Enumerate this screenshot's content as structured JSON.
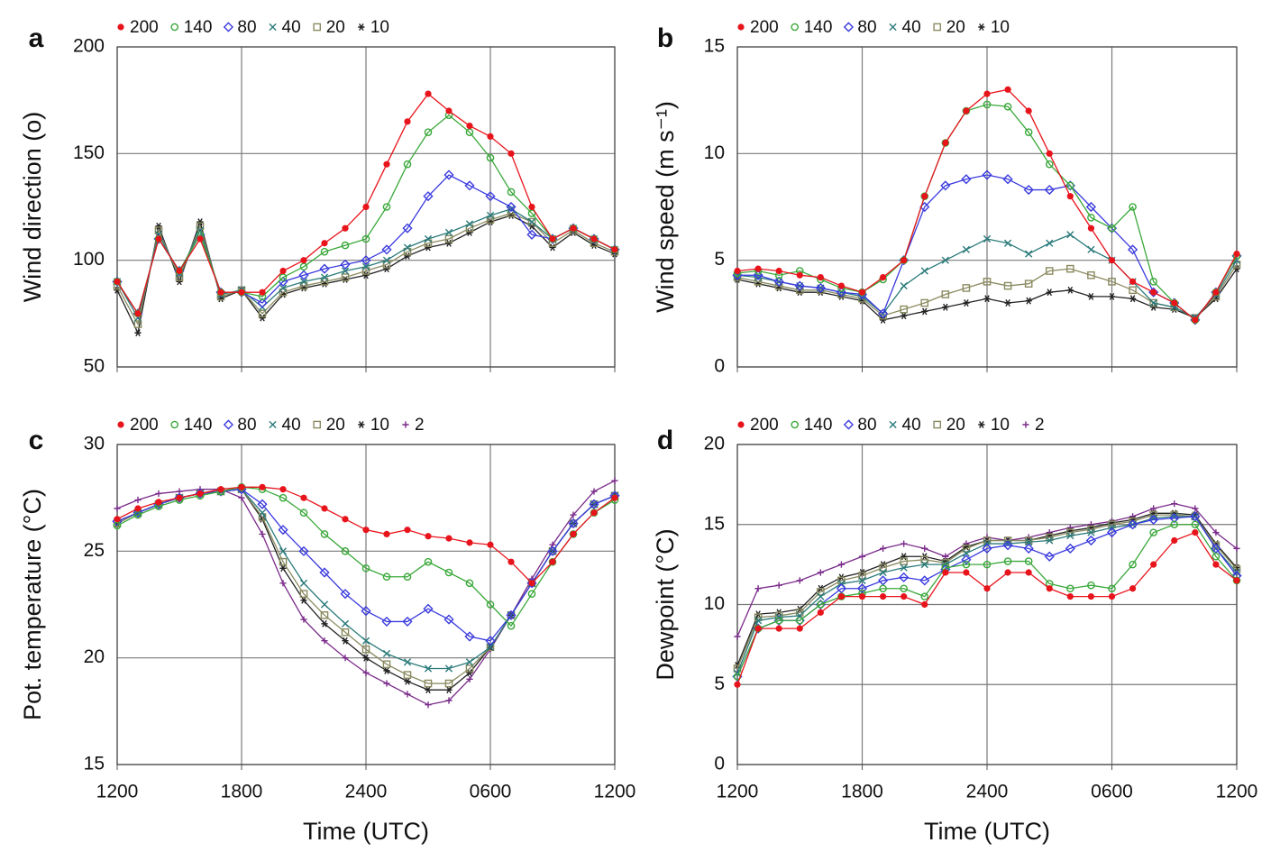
{
  "chart_data": [
    {
      "type": "line",
      "label": "a",
      "ylabel": "Wind direction (o)",
      "x": [
        0,
        1,
        2,
        3,
        4,
        5,
        6,
        7,
        8,
        9,
        10,
        11,
        12,
        13,
        14,
        15,
        16,
        17,
        18,
        19,
        20,
        21,
        22,
        23,
        24
      ],
      "xlim": [
        0,
        24
      ],
      "xticks": [
        0,
        6,
        12,
        18,
        24
      ],
      "ylim": [
        50,
        200
      ],
      "yticks": [
        50,
        100,
        150,
        200
      ],
      "grid": true,
      "series": [
        {
          "name": "200",
          "color": "#e8141c",
          "marker": "circle-filled",
          "values": [
            90,
            75,
            110,
            95,
            110,
            85,
            85,
            85,
            95,
            100,
            108,
            115,
            125,
            145,
            165,
            178,
            170,
            163,
            158,
            150,
            125,
            110,
            115,
            110,
            105
          ]
        },
        {
          "name": "140",
          "color": "#3aa83a",
          "marker": "circle-open",
          "values": [
            90,
            75,
            110,
            95,
            112,
            85,
            85,
            83,
            92,
            97,
            104,
            107,
            110,
            125,
            145,
            160,
            168,
            160,
            148,
            132,
            122,
            110,
            115,
            110,
            105
          ]
        },
        {
          "name": "80",
          "color": "#3a3adf",
          "marker": "diamond-open",
          "values": [
            90,
            75,
            110,
            95,
            112,
            85,
            85,
            80,
            90,
            93,
            96,
            98,
            100,
            105,
            115,
            130,
            140,
            135,
            130,
            125,
            112,
            110,
            115,
            110,
            105
          ]
        },
        {
          "name": "40",
          "color": "#2a7a7a",
          "marker": "x",
          "values": [
            90,
            73,
            112,
            94,
            114,
            84,
            86,
            78,
            87,
            90,
            92,
            95,
            97,
            100,
            106,
            110,
            113,
            117,
            121,
            124,
            118,
            110,
            115,
            110,
            105
          ]
        },
        {
          "name": "20",
          "color": "#8a8a60",
          "marker": "square-open",
          "values": [
            88,
            70,
            114,
            92,
            116,
            83,
            86,
            75,
            85,
            88,
            90,
            92,
            95,
            98,
            104,
            108,
            110,
            115,
            119,
            122,
            118,
            108,
            114,
            108,
            104
          ]
        },
        {
          "name": "10",
          "color": "#222222",
          "marker": "star",
          "values": [
            86,
            66,
            116,
            90,
            118,
            82,
            86,
            73,
            84,
            87,
            89,
            91,
            93,
            96,
            102,
            106,
            108,
            113,
            118,
            121,
            116,
            106,
            113,
            107,
            103
          ]
        }
      ]
    },
    {
      "type": "line",
      "label": "b",
      "ylabel": "Wind speed (m s⁻¹)",
      "x": [
        0,
        1,
        2,
        3,
        4,
        5,
        6,
        7,
        8,
        9,
        10,
        11,
        12,
        13,
        14,
        15,
        16,
        17,
        18,
        19,
        20,
        21,
        22,
        23,
        24
      ],
      "xlim": [
        0,
        24
      ],
      "xticks": [
        0,
        6,
        12,
        18,
        24
      ],
      "ylim": [
        0,
        15
      ],
      "yticks": [
        0,
        5,
        10,
        15
      ],
      "grid": true,
      "series": [
        {
          "name": "200",
          "color": "#e8141c",
          "marker": "circle-filled",
          "values": [
            4.5,
            4.6,
            4.5,
            4.3,
            4.2,
            3.8,
            3.5,
            4.2,
            5,
            8,
            10.5,
            12,
            12.8,
            13,
            12,
            10,
            8,
            6.5,
            5,
            4,
            3.5,
            3,
            2.2,
            3.5,
            5.3
          ]
        },
        {
          "name": "140",
          "color": "#3aa83a",
          "marker": "circle-open",
          "values": [
            4.4,
            4.5,
            4.3,
            4.5,
            4.1,
            3.7,
            3.5,
            4.1,
            5,
            8,
            10.5,
            12,
            12.3,
            12.2,
            11,
            9.5,
            8.5,
            7,
            6.5,
            7.5,
            4,
            3,
            2.2,
            3.5,
            5.2
          ]
        },
        {
          "name": "80",
          "color": "#3a3adf",
          "marker": "diamond-open",
          "values": [
            4.3,
            4.3,
            4.0,
            3.8,
            3.7,
            3.5,
            3.4,
            2.5,
            5,
            7.5,
            8.5,
            8.8,
            9,
            8.8,
            8.3,
            8.3,
            8.5,
            7.5,
            6.5,
            5.5,
            3.5,
            3,
            2.2,
            3.5,
            5.2
          ]
        },
        {
          "name": "40",
          "color": "#2a7a7a",
          "marker": "x",
          "values": [
            4.3,
            4.2,
            4.0,
            3.8,
            3.7,
            3.5,
            3.3,
            2.5,
            3.8,
            4.5,
            5,
            5.5,
            6,
            5.8,
            5.3,
            5.8,
            6.2,
            5.5,
            5,
            4,
            3,
            2.8,
            2.3,
            3.4,
            5
          ]
        },
        {
          "name": "20",
          "color": "#8a8a60",
          "marker": "square-open",
          "values": [
            4.2,
            4.0,
            3.8,
            3.6,
            3.6,
            3.4,
            3.2,
            2.4,
            2.7,
            3,
            3.4,
            3.7,
            4,
            3.8,
            3.9,
            4.5,
            4.6,
            4.3,
            4,
            3.6,
            3,
            2.8,
            2.3,
            3.3,
            4.8
          ]
        },
        {
          "name": "10",
          "color": "#222222",
          "marker": "star",
          "values": [
            4.1,
            3.9,
            3.7,
            3.5,
            3.5,
            3.3,
            3.1,
            2.2,
            2.4,
            2.6,
            2.8,
            3,
            3.2,
            3,
            3.1,
            3.5,
            3.6,
            3.3,
            3.3,
            3.2,
            2.8,
            2.7,
            2.3,
            3.2,
            4.6
          ]
        }
      ]
    },
    {
      "type": "line",
      "label": "c",
      "ylabel": "Pot. temperature (°C)",
      "xlabel": "Time (UTC)",
      "x": [
        0,
        1,
        2,
        3,
        4,
        5,
        6,
        7,
        8,
        9,
        10,
        11,
        12,
        13,
        14,
        15,
        16,
        17,
        18,
        19,
        20,
        21,
        22,
        23,
        24
      ],
      "xlim": [
        0,
        24
      ],
      "xticks": [
        {
          "value": 0,
          "label": "1200"
        },
        {
          "value": 6,
          "label": "1800"
        },
        {
          "value": 12,
          "label": "2400"
        },
        {
          "value": 18,
          "label": "0600"
        },
        {
          "value": 24,
          "label": "1200"
        }
      ],
      "ylim": [
        15,
        30
      ],
      "yticks": [
        15,
        20,
        25,
        30
      ],
      "grid": true,
      "series": [
        {
          "name": "200",
          "color": "#e8141c",
          "marker": "circle-filled",
          "values": [
            26.5,
            27,
            27.3,
            27.5,
            27.7,
            27.9,
            28,
            28,
            27.9,
            27.5,
            27,
            26.5,
            26,
            25.8,
            26,
            25.7,
            25.6,
            25.4,
            25.3,
            24.5,
            23.5,
            24.5,
            25.8,
            26.8,
            27.5
          ]
        },
        {
          "name": "140",
          "color": "#3aa83a",
          "marker": "circle-open",
          "values": [
            26.2,
            26.7,
            27.1,
            27.4,
            27.6,
            27.8,
            28,
            27.9,
            27.5,
            26.8,
            25.8,
            25,
            24.2,
            23.8,
            23.8,
            24.5,
            24,
            23.5,
            22.5,
            21.5,
            23,
            24.5,
            25.8,
            26.8,
            27.4
          ]
        },
        {
          "name": "80",
          "color": "#3a3adf",
          "marker": "diamond-open",
          "values": [
            26.4,
            26.8,
            27.2,
            27.5,
            27.7,
            27.8,
            27.9,
            27.2,
            26,
            25,
            24,
            23,
            22.2,
            21.7,
            21.7,
            22.3,
            21.8,
            21,
            20.8,
            22,
            23.5,
            25,
            26.3,
            27.2,
            27.6
          ]
        },
        {
          "name": "40",
          "color": "#2a7a7a",
          "marker": "x",
          "values": [
            26.4,
            26.8,
            27.2,
            27.5,
            27.7,
            27.8,
            27.9,
            26.8,
            25,
            23.5,
            22.5,
            21.6,
            20.8,
            20.2,
            19.8,
            19.5,
            19.5,
            19.8,
            20.5,
            22,
            23.5,
            25,
            26.3,
            27.2,
            27.6
          ]
        },
        {
          "name": "20",
          "color": "#8a8a60",
          "marker": "square-open",
          "values": [
            26.3,
            26.8,
            27.2,
            27.5,
            27.7,
            27.8,
            27.9,
            26.6,
            24.5,
            23,
            22,
            21.2,
            20.4,
            19.7,
            19.2,
            18.8,
            18.8,
            19.5,
            20.5,
            22,
            23.5,
            25,
            26.3,
            27.2,
            27.6
          ]
        },
        {
          "name": "10",
          "color": "#222222",
          "marker": "star",
          "values": [
            26.3,
            26.8,
            27.2,
            27.5,
            27.7,
            27.8,
            27.9,
            26.5,
            24.2,
            22.7,
            21.6,
            20.8,
            20,
            19.4,
            18.9,
            18.5,
            18.5,
            19.3,
            20.5,
            22,
            23.5,
            25,
            26.3,
            27.2,
            27.6
          ]
        },
        {
          "name": "2",
          "color": "#7a2a8a",
          "marker": "plus",
          "values": [
            27,
            27.4,
            27.7,
            27.8,
            27.9,
            27.9,
            27.5,
            25.8,
            23.5,
            21.8,
            20.8,
            20,
            19.3,
            18.8,
            18.3,
            17.8,
            18,
            19,
            20.4,
            22,
            23.7,
            25.3,
            26.7,
            27.8,
            28.3
          ]
        }
      ]
    },
    {
      "type": "line",
      "label": "d",
      "ylabel": "Dewpoint (°C)",
      "xlabel": "Time (UTC)",
      "x": [
        0,
        1,
        2,
        3,
        4,
        5,
        6,
        7,
        8,
        9,
        10,
        11,
        12,
        13,
        14,
        15,
        16,
        17,
        18,
        19,
        20,
        21,
        22,
        23,
        24
      ],
      "xlim": [
        0,
        24
      ],
      "xticks": [
        {
          "value": 0,
          "label": "1200"
        },
        {
          "value": 6,
          "label": "1800"
        },
        {
          "value": 12,
          "label": "2400"
        },
        {
          "value": 18,
          "label": "0600"
        },
        {
          "value": 24,
          "label": "1200"
        }
      ],
      "ylim": [
        0,
        20
      ],
      "yticks": [
        0,
        5,
        10,
        15,
        20
      ],
      "grid": true,
      "series": [
        {
          "name": "200",
          "color": "#e8141c",
          "marker": "circle-filled",
          "values": [
            5,
            8.5,
            8.5,
            8.5,
            9.5,
            10.5,
            10.5,
            10.5,
            10.5,
            10,
            12,
            12,
            11,
            12,
            12,
            11,
            10.5,
            10.5,
            10.5,
            11,
            12.5,
            14,
            14.5,
            12.5,
            11.5
          ]
        },
        {
          "name": "140",
          "color": "#3aa83a",
          "marker": "circle-open",
          "values": [
            5.5,
            8.5,
            9,
            9,
            10,
            10.5,
            10.7,
            11,
            11,
            10.5,
            12.3,
            12.5,
            12.5,
            12.7,
            12.7,
            11.3,
            11,
            11.2,
            11,
            12.5,
            14.5,
            15,
            15,
            13,
            11.5
          ]
        },
        {
          "name": "80",
          "color": "#3a3adf",
          "marker": "diamond-open",
          "values": [
            5.5,
            8.5,
            9,
            9,
            10,
            11,
            11,
            11.5,
            11.7,
            11.5,
            12.2,
            12.8,
            13.5,
            13.7,
            13.5,
            13,
            13.5,
            14,
            14.5,
            15,
            15.3,
            15.4,
            15.5,
            13.5,
            11.8
          ]
        },
        {
          "name": "40",
          "color": "#2a7a7a",
          "marker": "x",
          "values": [
            5.7,
            9,
            9.2,
            9.3,
            10.5,
            11.3,
            11.5,
            12,
            12.3,
            12.5,
            12.5,
            13.2,
            13.8,
            13.8,
            13.9,
            14,
            14.3,
            14.5,
            14.8,
            15,
            15.4,
            15.5,
            15.5,
            13.5,
            12
          ]
        },
        {
          "name": "20",
          "color": "#8a8a60",
          "marker": "square-open",
          "values": [
            6,
            9.2,
            9.3,
            9.5,
            10.8,
            11.5,
            11.8,
            12.3,
            12.7,
            12.8,
            12.6,
            13.5,
            14,
            14,
            14,
            14.2,
            14.5,
            14.7,
            15,
            15.2,
            15.6,
            15.6,
            15.5,
            13.7,
            12.2
          ]
        },
        {
          "name": "10",
          "color": "#222222",
          "marker": "star",
          "values": [
            6.2,
            9.4,
            9.5,
            9.7,
            11,
            11.7,
            12,
            12.5,
            13,
            13,
            12.7,
            13.6,
            14,
            14,
            14,
            14.3,
            14.6,
            14.8,
            15.1,
            15.3,
            15.7,
            15.7,
            15.6,
            13.8,
            12.3
          ]
        },
        {
          "name": "2",
          "color": "#7a2a8a",
          "marker": "plus",
          "values": [
            8,
            11,
            11.2,
            11.5,
            12,
            12.5,
            13,
            13.5,
            13.8,
            13.5,
            13,
            13.8,
            14.2,
            14,
            14.2,
            14.5,
            14.8,
            15,
            15.2,
            15.5,
            16,
            16.3,
            16,
            14.5,
            13.5
          ]
        }
      ]
    }
  ]
}
